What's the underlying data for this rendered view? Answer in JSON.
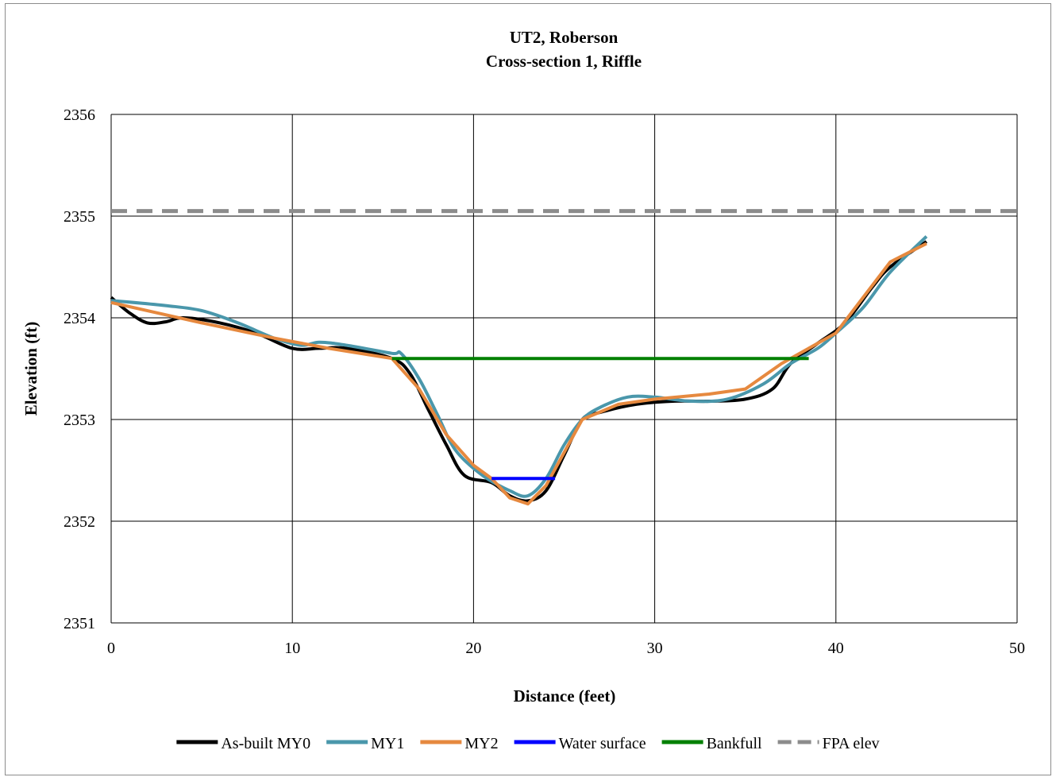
{
  "chart_data": {
    "type": "line",
    "title": "UT2, Roberson",
    "subtitle": "Cross-section 1, Riffle",
    "xlabel": "Distance (feet)",
    "ylabel": "Elevation (ft)",
    "xlim": [
      0,
      50
    ],
    "ylim": [
      2351,
      2356
    ],
    "xticks": [
      0,
      10,
      20,
      30,
      40,
      50
    ],
    "yticks": [
      2351,
      2352,
      2353,
      2354,
      2355,
      2356
    ],
    "grid": true,
    "legend_position": "bottom",
    "series": [
      {
        "name": "As-built MY0",
        "color": "#000000",
        "style": "solid",
        "smooth": true,
        "points": [
          [
            0,
            2354.2
          ],
          [
            1,
            2354.05
          ],
          [
            2,
            2353.95
          ],
          [
            3,
            2353.96
          ],
          [
            4,
            2354.0
          ],
          [
            6,
            2353.95
          ],
          [
            8,
            2353.85
          ],
          [
            10,
            2353.7
          ],
          [
            11.5,
            2353.7
          ],
          [
            13,
            2353.7
          ],
          [
            15.5,
            2353.6
          ],
          [
            16.5,
            2353.45
          ],
          [
            17.5,
            2353.1
          ],
          [
            18.5,
            2352.75
          ],
          [
            19.5,
            2352.45
          ],
          [
            21,
            2352.38
          ],
          [
            22,
            2352.25
          ],
          [
            23,
            2352.2
          ],
          [
            24,
            2352.3
          ],
          [
            25,
            2352.65
          ],
          [
            26,
            2353.0
          ],
          [
            27,
            2353.07
          ],
          [
            29,
            2353.15
          ],
          [
            31,
            2353.18
          ],
          [
            33,
            2353.18
          ],
          [
            35,
            2353.2
          ],
          [
            36.5,
            2353.3
          ],
          [
            37.5,
            2353.55
          ],
          [
            39,
            2353.75
          ],
          [
            40.5,
            2353.95
          ],
          [
            42,
            2354.3
          ],
          [
            43,
            2354.5
          ],
          [
            45,
            2354.75
          ]
        ]
      },
      {
        "name": "MY1",
        "color": "#4a97ab",
        "style": "solid",
        "smooth": true,
        "points": [
          [
            0,
            2354.17
          ],
          [
            3,
            2354.12
          ],
          [
            5,
            2354.07
          ],
          [
            7,
            2353.95
          ],
          [
            9,
            2353.8
          ],
          [
            10.5,
            2353.73
          ],
          [
            11.5,
            2353.76
          ],
          [
            13,
            2353.73
          ],
          [
            15.5,
            2353.65
          ],
          [
            16,
            2353.65
          ],
          [
            17,
            2353.4
          ],
          [
            18,
            2353.05
          ],
          [
            19,
            2352.7
          ],
          [
            20.5,
            2352.45
          ],
          [
            22,
            2352.3
          ],
          [
            23,
            2352.25
          ],
          [
            24,
            2352.42
          ],
          [
            25,
            2352.75
          ],
          [
            26,
            2353.0
          ],
          [
            27,
            2353.12
          ],
          [
            28.5,
            2353.22
          ],
          [
            30,
            2353.22
          ],
          [
            32,
            2353.18
          ],
          [
            34,
            2353.2
          ],
          [
            36,
            2353.35
          ],
          [
            37.5,
            2353.55
          ],
          [
            39,
            2353.7
          ],
          [
            40,
            2353.85
          ],
          [
            41.5,
            2354.1
          ],
          [
            43,
            2354.45
          ],
          [
            45,
            2354.8
          ]
        ]
      },
      {
        "name": "MY2",
        "color": "#e6893f",
        "style": "solid",
        "smooth": false,
        "points": [
          [
            0,
            2354.15
          ],
          [
            5,
            2353.95
          ],
          [
            9,
            2353.8
          ],
          [
            12,
            2353.7
          ],
          [
            15.5,
            2353.6
          ],
          [
            17,
            2353.3
          ],
          [
            18.5,
            2352.85
          ],
          [
            20,
            2352.55
          ],
          [
            21,
            2352.42
          ],
          [
            22,
            2352.23
          ],
          [
            23,
            2352.17
          ],
          [
            24,
            2352.35
          ],
          [
            26,
            2353.0
          ],
          [
            28,
            2353.15
          ],
          [
            30,
            2353.2
          ],
          [
            33,
            2353.25
          ],
          [
            35,
            2353.3
          ],
          [
            37,
            2353.55
          ],
          [
            38.5,
            2353.7
          ],
          [
            40,
            2353.85
          ],
          [
            43,
            2354.55
          ],
          [
            45,
            2354.73
          ]
        ]
      },
      {
        "name": "Water surface",
        "color": "#0000ff",
        "style": "solid",
        "smooth": false,
        "points": [
          [
            21,
            2352.42
          ],
          [
            24.5,
            2352.42
          ]
        ]
      },
      {
        "name": "Bankfull",
        "color": "#008000",
        "style": "solid",
        "smooth": false,
        "points": [
          [
            15.5,
            2353.6
          ],
          [
            38.5,
            2353.6
          ]
        ]
      },
      {
        "name": "FPA elev",
        "color": "#8c8c8c",
        "style": "dashed",
        "smooth": false,
        "points": [
          [
            0,
            2355.05
          ],
          [
            50,
            2355.05
          ]
        ]
      }
    ]
  }
}
